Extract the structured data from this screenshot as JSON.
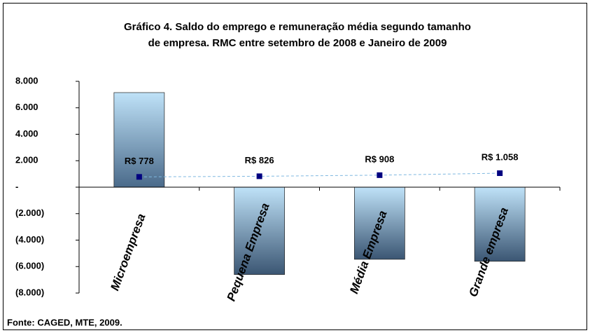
{
  "chart_data": {
    "type": "bar_line",
    "title": "Gráfico 4. Saldo do emprego e remuneração média segundo tamanho",
    "subtitle": "de empresa. RMC entre setembro de 2008 e Janeiro de 2009",
    "categories": [
      "Microempresa",
      "Pequena Empresa",
      "Média Empresa",
      "Grande empresa"
    ],
    "series": [
      {
        "type": "bar",
        "color": "#4a6a8a",
        "values": [
          7150,
          -6600,
          -5450,
          -5600
        ]
      },
      {
        "type": "line",
        "color": "#000080",
        "values": [
          778,
          826,
          908,
          1058
        ],
        "value_labels": [
          "R$ 778",
          "R$ 826",
          "R$ 908",
          "R$ 1.058"
        ]
      }
    ],
    "ylim": [
      -8000,
      8000
    ],
    "yticks": [
      {
        "value": 8000,
        "label": "8.000"
      },
      {
        "value": 6000,
        "label": "6.000"
      },
      {
        "value": 4000,
        "label": "4.000"
      },
      {
        "value": 2000,
        "label": "2.000"
      },
      {
        "value": 0,
        "label": "-"
      },
      {
        "value": -2000,
        "label": "(2.000)"
      },
      {
        "value": -4000,
        "label": "(4.000)"
      },
      {
        "value": -6000,
        "label": "(6.000)"
      },
      {
        "value": -8000,
        "label": "(8.000)"
      }
    ],
    "source": "Fonte: CAGED, MTE, 2009."
  }
}
